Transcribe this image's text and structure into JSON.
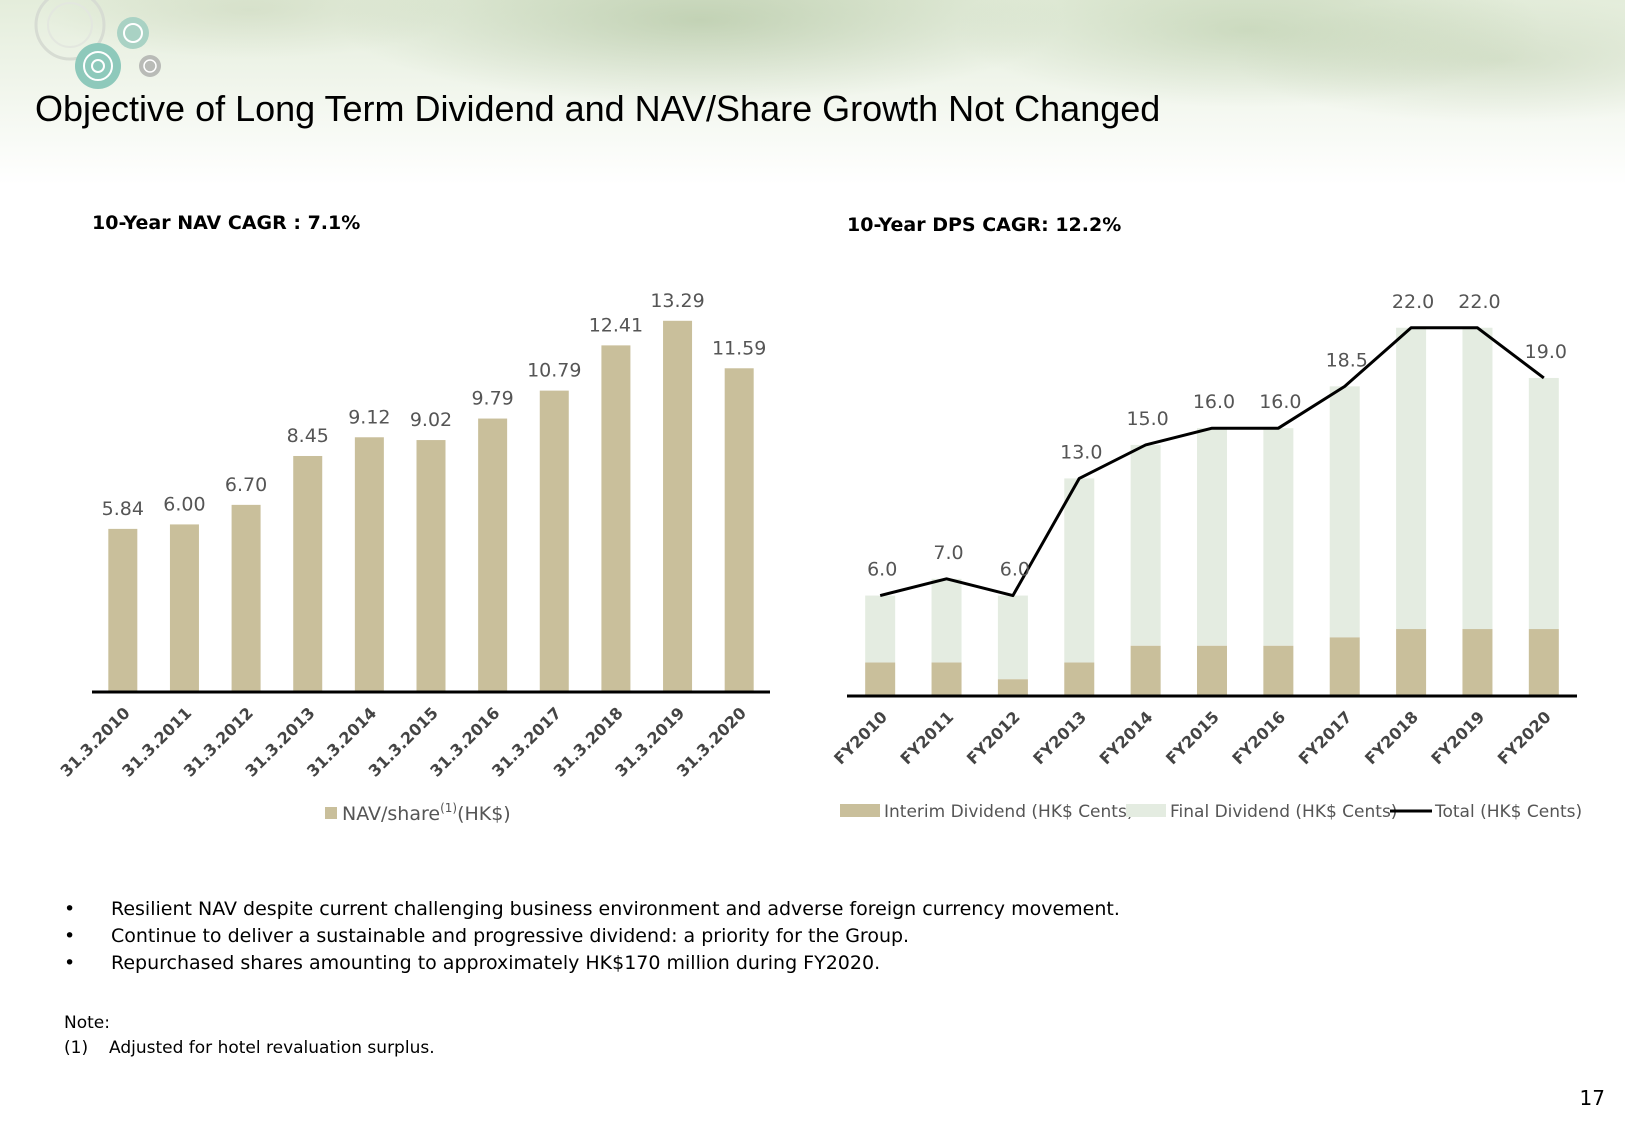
{
  "header": {
    "title": "Objective of Long Term Dividend and NAV/Share Growth Not Changed"
  },
  "colors": {
    "nav_bar": "#c9bf9b",
    "interim": "#c9bf9b",
    "final": "#e4ece1",
    "total_line": "#000000"
  },
  "chart_data": [
    {
      "type": "bar",
      "title": "10-Year NAV CAGR : 7.1%",
      "categories": [
        "31.3.2010",
        "31.3.2011",
        "31.3.2012",
        "31.3.2013",
        "31.3.2014",
        "31.3.2015",
        "31.3.2016",
        "31.3.2017",
        "31.3.2018",
        "31.3.2019",
        "31.3.2020"
      ],
      "series": [
        {
          "name": "NAV/share(1)(HK$)",
          "values": [
            5.84,
            6.0,
            6.7,
            8.45,
            9.12,
            9.02,
            9.79,
            10.79,
            12.41,
            13.29,
            11.59
          ],
          "labels": [
            "5.84",
            "6.00",
            "6.70",
            "8.45",
            "9.12",
            "9.02",
            "9.79",
            "10.79",
            "12.41",
            "13.29",
            "11.59"
          ]
        }
      ],
      "legend": {
        "prefix": "NAV/share",
        "sup": "(1)",
        "suffix": "(HK$)"
      },
      "ylim": [
        0,
        14.5
      ],
      "grid": false,
      "legend_placement": "bottom"
    },
    {
      "type": "bar",
      "stacked": true,
      "title": "10-Year DPS CAGR: 12.2%",
      "categories": [
        "FY2010",
        "FY2011",
        "FY2012",
        "FY2013",
        "FY2014",
        "FY2015",
        "FY2016",
        "FY2017",
        "FY2018",
        "FY2019",
        "FY2020"
      ],
      "series": [
        {
          "name": "Interim Dividend (HK$ Cents)",
          "values": [
            2.0,
            2.0,
            1.0,
            2.0,
            3.0,
            3.0,
            3.0,
            3.5,
            4.0,
            4.0,
            4.0
          ]
        },
        {
          "name": "Final Dividend (HK$ Cents)",
          "values": [
            4.0,
            5.0,
            5.0,
            11.0,
            12.0,
            13.0,
            13.0,
            15.0,
            18.0,
            18.0,
            15.0
          ]
        },
        {
          "name": "Total (HK$ Cents)",
          "type": "line",
          "values": [
            6.0,
            7.0,
            6.0,
            13.0,
            15.0,
            16.0,
            16.0,
            18.5,
            22.0,
            22.0,
            19.0
          ],
          "labels": [
            "6.0",
            "7.0",
            "6.0",
            "13.0",
            "15.0",
            "16.0",
            "16.0",
            "18.5",
            "22.0",
            "22.0",
            "19.0"
          ]
        }
      ],
      "ylim": [
        0,
        23.3
      ],
      "grid": false,
      "legend_placement": "bottom"
    }
  ],
  "bullets": [
    "Resilient NAV despite current challenging business environment and adverse foreign currency movement.",
    "Continue to deliver a sustainable and progressive dividend: a priority for the Group.",
    "Repurchased shares amounting to approximately HK$170 million during FY2020."
  ],
  "note": {
    "heading": "Note:",
    "number": "(1)",
    "text": "Adjusted for hotel revaluation surplus."
  },
  "page_number": "17"
}
